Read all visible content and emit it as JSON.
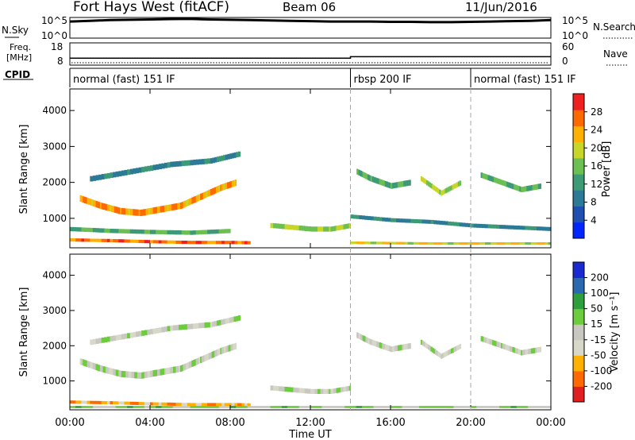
{
  "header": {
    "title": "Fort Hays West (fitACF)",
    "beam": "Beam 06",
    "date": "11/Jun/2016"
  },
  "colors": {
    "power_scale": [
      "#0026ff",
      "#1f4fb0",
      "#2d7a96",
      "#3c9a76",
      "#6cbf53",
      "#c8d62a",
      "#ffb000",
      "#ff6a00",
      "#f02020"
    ],
    "velocity_scale": [
      "#e02020",
      "#ff6a00",
      "#ffb000",
      "#d8d8c8",
      "#c8c8c0",
      "#6ccc3c",
      "#2f9e3c",
      "#2c6ab0",
      "#1a2ad0"
    ]
  },
  "charts": [
    {
      "name": "noise-panel",
      "type": "line",
      "left_label": "N.Sky",
      "right_label": "N.Search",
      "left_ticks": [
        "10^5",
        "10^0"
      ],
      "right_ticks": [
        "10^5",
        "10^0"
      ],
      "x_range_hours": [
        0,
        24
      ],
      "series": [
        {
          "name": "N.Sky",
          "x": [
            0,
            1,
            2,
            3,
            4,
            5,
            6,
            7,
            8,
            9,
            10,
            11,
            12,
            13,
            14,
            15,
            16,
            17,
            18,
            19,
            20,
            21,
            22,
            23,
            24
          ],
          "values": [
            20000.0,
            32000.0,
            50000.0,
            63000.0,
            79000.0,
            100000.0,
            110000.0,
            79000.0,
            63000.0,
            50000.0,
            40000.0,
            32000.0,
            25000.0,
            20000.0,
            20000.0,
            20000.0,
            16000.0,
            16000.0,
            13000.0,
            13000.0,
            16000.0,
            20000.0,
            25000.0,
            32000.0,
            50000.0
          ]
        }
      ]
    },
    {
      "name": "freq-panel",
      "type": "line",
      "left_label_top": "Freq.",
      "left_label_bottom": "[MHz]",
      "right_label": "Nave",
      "left_ticks": [
        "18",
        "8"
      ],
      "right_ticks": [
        "60",
        "0"
      ],
      "series": [
        {
          "name": "Freq.",
          "x": [
            0,
            14,
            14,
            24
          ],
          "values": [
            10.8,
            10.8,
            11.6,
            11.6
          ]
        }
      ]
    },
    {
      "name": "cpid-panel",
      "type": "table",
      "label": "CPID",
      "segments": [
        {
          "start": 0,
          "end": 14,
          "text": "normal (fast) 151 IF"
        },
        {
          "start": 14,
          "end": 20,
          "text": "rbsp 200 IF"
        },
        {
          "start": 20,
          "end": 24,
          "text": "normal (fast) 151 IF"
        }
      ]
    },
    {
      "name": "power-panel",
      "type": "heatmap",
      "ylabel": "Slant Range [km]",
      "ylim": [
        180,
        4600
      ],
      "yticks": [
        "1000",
        "2000",
        "3000",
        "4000"
      ],
      "colorbar_label": "Power [dB]",
      "colorbar_ticks": [
        "4",
        "8",
        "12",
        "16",
        "20",
        "24",
        "28"
      ],
      "vmin": 0,
      "vmax": 32,
      "features": [
        {
          "t": [
            0.5,
            1.5,
            2.5,
            3.5,
            4.5,
            5.5,
            6.5,
            7.5,
            8.3
          ],
          "r": [
            1550,
            1350,
            1200,
            1150,
            1250,
            1350,
            1600,
            1850,
            2000
          ],
          "w": 180,
          "v": 24
        },
        {
          "t": [
            0,
            2,
            4,
            6,
            8,
            9
          ],
          "r": [
            400,
            380,
            350,
            330,
            330,
            320
          ],
          "w": 90,
          "v": 26
        },
        {
          "t": [
            0,
            2,
            4,
            6,
            8
          ],
          "r": [
            700,
            650,
            620,
            600,
            650
          ],
          "w": 120,
          "v": 14
        },
        {
          "t": [
            1,
            3,
            5,
            7,
            8.5
          ],
          "r": [
            2100,
            2300,
            2500,
            2600,
            2800
          ],
          "w": 150,
          "v": 10
        },
        {
          "t": [
            10,
            12,
            13,
            14
          ],
          "r": [
            800,
            700,
            700,
            800
          ],
          "w": 140,
          "v": 18
        },
        {
          "t": [
            14.3,
            15,
            16,
            17
          ],
          "r": [
            2300,
            2100,
            1900,
            2000
          ],
          "w": 160,
          "v": 14
        },
        {
          "t": [
            14,
            16,
            18,
            20,
            22,
            24
          ],
          "r": [
            1050,
            950,
            900,
            800,
            750,
            700
          ],
          "w": 110,
          "v": 10
        },
        {
          "t": [
            17.5,
            18.5,
            19.5
          ],
          "r": [
            2100,
            1700,
            2000
          ],
          "w": 140,
          "v": 18
        },
        {
          "t": [
            20.5,
            21.5,
            22.5,
            23.5
          ],
          "r": [
            2200,
            2000,
            1800,
            1900
          ],
          "w": 150,
          "v": 14
        },
        {
          "t": [
            14,
            16,
            18,
            20,
            22,
            24
          ],
          "r": [
            320,
            310,
            300,
            300,
            300,
            300
          ],
          "w": 70,
          "v": 20
        }
      ]
    },
    {
      "name": "velocity-panel",
      "type": "heatmap",
      "ylabel": "Slant Range [km]",
      "ylim": [
        180,
        4600
      ],
      "yticks": [
        "1000",
        "2000",
        "3000",
        "4000"
      ],
      "xticks": [
        "00:00",
        "04:00",
        "08:00",
        "12:00",
        "16:00",
        "20:00",
        "00:00"
      ],
      "xlabel": "Time UT",
      "colorbar_label": "Velocity [m s⁻¹]",
      "colorbar_ticks": [
        "-200",
        "-100",
        "-50",
        "-15",
        "15",
        "50",
        "100",
        "200"
      ],
      "vmin": -250,
      "vmax": 250,
      "features": [
        {
          "t": [
            0.5,
            1.5,
            2.5,
            3.5,
            4.5,
            5.5,
            6.5,
            7.5,
            8.3
          ],
          "r": [
            1550,
            1350,
            1200,
            1150,
            1250,
            1350,
            1600,
            1850,
            2000
          ],
          "w": 180,
          "v": 0
        },
        {
          "t": [
            0,
            2,
            4,
            6,
            8,
            9
          ],
          "r": [
            400,
            380,
            350,
            330,
            330,
            320
          ],
          "w": 90,
          "v": -120
        },
        {
          "t": [
            1,
            3,
            5,
            7,
            8.5
          ],
          "r": [
            2100,
            2300,
            2500,
            2600,
            2800
          ],
          "w": 150,
          "v": 0
        },
        {
          "t": [
            10,
            12,
            13,
            14
          ],
          "r": [
            800,
            700,
            700,
            800
          ],
          "w": 140,
          "v": 0
        },
        {
          "t": [
            14.3,
            15,
            16,
            17
          ],
          "r": [
            2300,
            2100,
            1900,
            2000
          ],
          "w": 160,
          "v": 0
        },
        {
          "t": [
            17.5,
            18.5,
            19.5
          ],
          "r": [
            2100,
            1700,
            2000
          ],
          "w": 140,
          "v": 0
        },
        {
          "t": [
            20.5,
            21.5,
            22.5,
            23.5
          ],
          "r": [
            2200,
            2000,
            1800,
            1900
          ],
          "w": 150,
          "v": 0
        },
        {
          "t": [
            0,
            4,
            8,
            12,
            16,
            20,
            24
          ],
          "r": [
            260,
            260,
            260,
            260,
            260,
            260,
            260
          ],
          "w": 60,
          "v": 40
        }
      ]
    }
  ],
  "dashed_markers_hours": [
    14,
    20
  ]
}
